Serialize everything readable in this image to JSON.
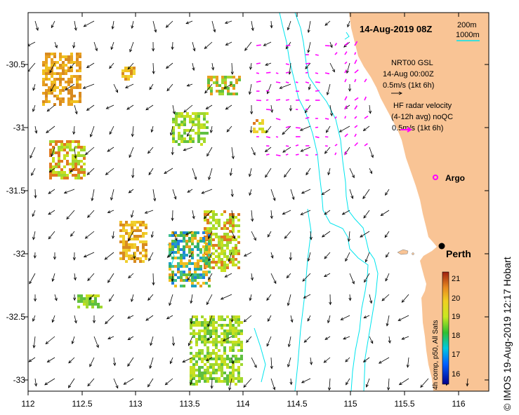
{
  "map": {
    "title": "14-Aug-2019 08Z",
    "depth_legend": [
      "200m",
      "1000m"
    ],
    "lon_ticks": [
      "112",
      "112.5",
      "113",
      "113.5",
      "114",
      "114.5",
      "115",
      "115.5",
      "116"
    ],
    "lat_ticks": [
      "-30.5",
      "-31",
      "-31.5",
      "-32",
      "-32.5",
      "-33"
    ],
    "nrt_legend": [
      "NRT00 GSL",
      "14-Aug 00:00Z",
      "0.5m/s (1kt 6h)"
    ],
    "hf_legend": [
      "HF radar velocity",
      "(4-12h avg) noQC",
      "0.5m/s (1kt 6h)"
    ],
    "argo_label": "Argo",
    "city_label": "Perth",
    "sst_label": "4h comp, p50, All Sats",
    "sst_ticks": [
      "21",
      "20",
      "19",
      "18",
      "17",
      "16"
    ],
    "credit": "© IMOS 19-Aug-2019 12:17 Hobart",
    "colors": {
      "land": "#f9c495",
      "isobath": "#00e5ee",
      "hf_arrow": "#ff00ff",
      "current_arrow": "#000000"
    }
  }
}
